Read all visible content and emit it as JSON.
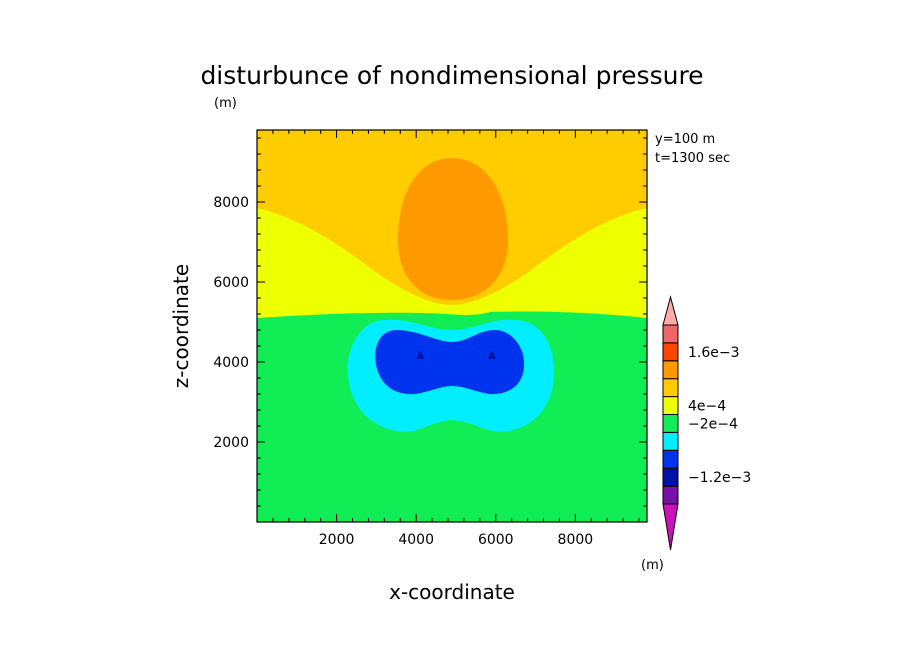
{
  "chart_data": {
    "type": "heatmap",
    "title": "disturbunce of nondimensional pressure",
    "units": "(m)",
    "xlabel": "x-coordinate",
    "ylabel": "z-coordinate",
    "xlim": [
      0,
      9800
    ],
    "ylim": [
      0,
      9800
    ],
    "x_ticks": [
      2000,
      4000,
      6000,
      8000
    ],
    "y_ticks": [
      2000,
      4000,
      6000,
      8000
    ],
    "annotations": [
      "y=100 m",
      "t=1300 sec"
    ],
    "colorbar": {
      "units": "(m)",
      "labels": [
        {
          "value": "1.6e-3",
          "level": 0.0016
        },
        {
          "value": "4e-4",
          "level": 0.0004
        },
        {
          "value": "-2e-4",
          "level": -0.0002
        },
        {
          "value": "-1.2e-3",
          "level": -0.0012
        }
      ],
      "colors": [
        "#cc11bb",
        "#7711aa",
        "#0011aa",
        "#0033ee",
        "#00eeff",
        "#11ee55",
        "#eeff00",
        "#ffcc00",
        "#ff9900",
        "#ff4400",
        "#ee6666",
        "#ffaaaa"
      ]
    },
    "regions": [
      {
        "level": "background_lower",
        "color": "#11ee55"
      },
      {
        "level": "yellow_band",
        "color": "#eeff00"
      },
      {
        "level": "upper",
        "color": "#ffcc00"
      },
      {
        "level": "orange_core",
        "color": "#ff9900",
        "center": [
          5000,
          7200
        ]
      },
      {
        "level": "cyan_ring",
        "color": "#00eeff"
      },
      {
        "level": "blue_core",
        "color": "#0033ee"
      },
      {
        "level": "min_points",
        "color": "#0011aa",
        "points": [
          [
            4100,
            4150
          ],
          [
            5900,
            4150
          ]
        ]
      }
    ]
  }
}
